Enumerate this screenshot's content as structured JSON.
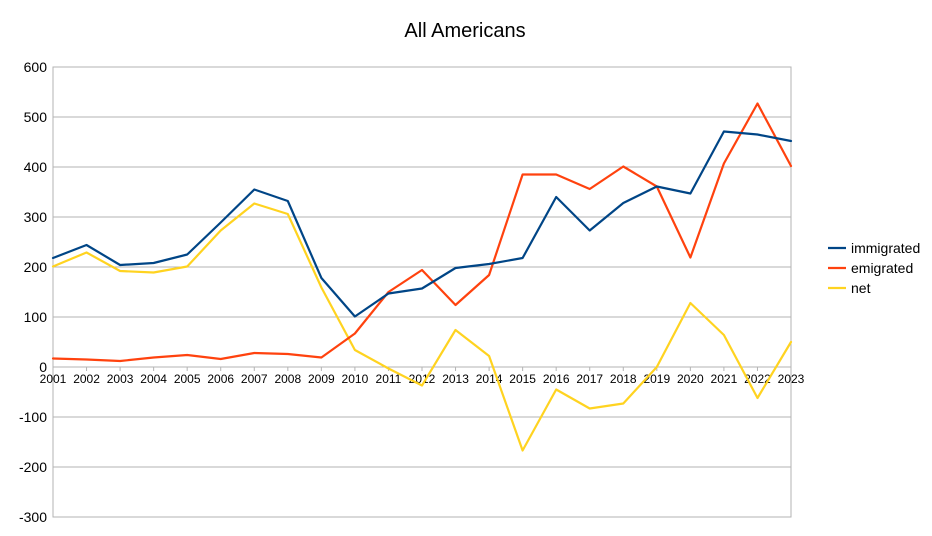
{
  "chart_data": {
    "type": "line",
    "title": "All Americans",
    "xlabel": "",
    "ylabel": "",
    "ylim": [
      -300,
      600
    ],
    "yticks": [
      600,
      500,
      400,
      300,
      200,
      100,
      0,
      -100,
      -200,
      -300
    ],
    "x": [
      "2001",
      "2002",
      "2003",
      "2004",
      "2005",
      "2006",
      "2007",
      "2008",
      "2009",
      "2010",
      "2011",
      "2012",
      "2013",
      "2014",
      "2015",
      "2016",
      "2017",
      "2018",
      "2019",
      "2020",
      "2021",
      "2022",
      "2023"
    ],
    "grid": true,
    "legend_position": "right",
    "series": [
      {
        "name": "immigrated",
        "color": "#004586",
        "values": [
          218,
          244,
          204,
          208,
          225,
          289,
          355,
          332,
          178,
          101,
          147,
          157,
          198,
          206,
          218,
          340,
          273,
          328,
          361,
          347,
          471,
          465,
          452
        ]
      },
      {
        "name": "emigrated",
        "color": "#ff420e",
        "values": [
          17,
          15,
          12,
          19,
          24,
          16,
          28,
          26,
          19,
          67,
          150,
          194,
          124,
          184,
          385,
          385,
          356,
          401,
          361,
          219,
          407,
          527,
          402
        ]
      },
      {
        "name": "net",
        "color": "#ffd320",
        "values": [
          201,
          229,
          192,
          189,
          201,
          273,
          327,
          306,
          159,
          34,
          -3,
          -37,
          74,
          22,
          -167,
          -45,
          -83,
          -73,
          0,
          128,
          64,
          -62,
          50
        ]
      }
    ]
  }
}
